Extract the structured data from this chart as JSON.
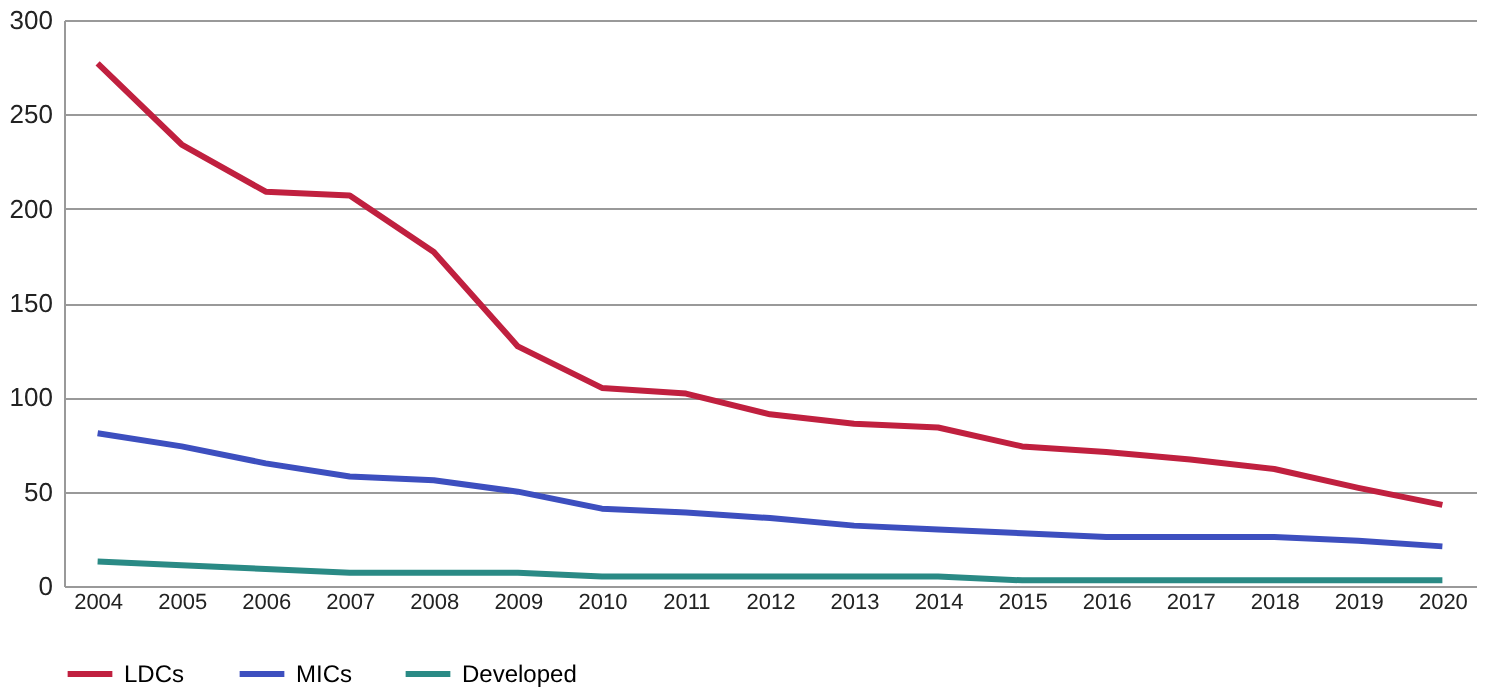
{
  "chart_data": {
    "type": "line",
    "categories": [
      "2004",
      "2005",
      "2006",
      "2007",
      "2008",
      "2009",
      "2010",
      "2011",
      "2012",
      "2013",
      "2014",
      "2015",
      "2016",
      "2017",
      "2018",
      "2019",
      "2020"
    ],
    "series": [
      {
        "name": "LDCs",
        "color": "#c0203f",
        "values": [
          277,
          234,
          209,
          207,
          177,
          127,
          105,
          102,
          91,
          86,
          84,
          74,
          71,
          67,
          62,
          52,
          43
        ]
      },
      {
        "name": "MICs",
        "color": "#3d4fbf",
        "values": [
          81,
          74,
          65,
          58,
          56,
          50,
          41,
          39,
          36,
          32,
          30,
          28,
          26,
          26,
          26,
          24,
          21
        ]
      },
      {
        "name": "Developed",
        "color": "#2a8a85",
        "values": [
          13,
          11,
          9,
          7,
          7,
          7,
          5,
          5,
          5,
          5,
          5,
          3,
          3,
          3,
          3,
          3,
          3
        ]
      }
    ],
    "ylim": [
      0,
      300
    ],
    "yticks": [
      0,
      50,
      100,
      150,
      200,
      250,
      300
    ],
    "grid": "y",
    "legend": "bottom"
  }
}
